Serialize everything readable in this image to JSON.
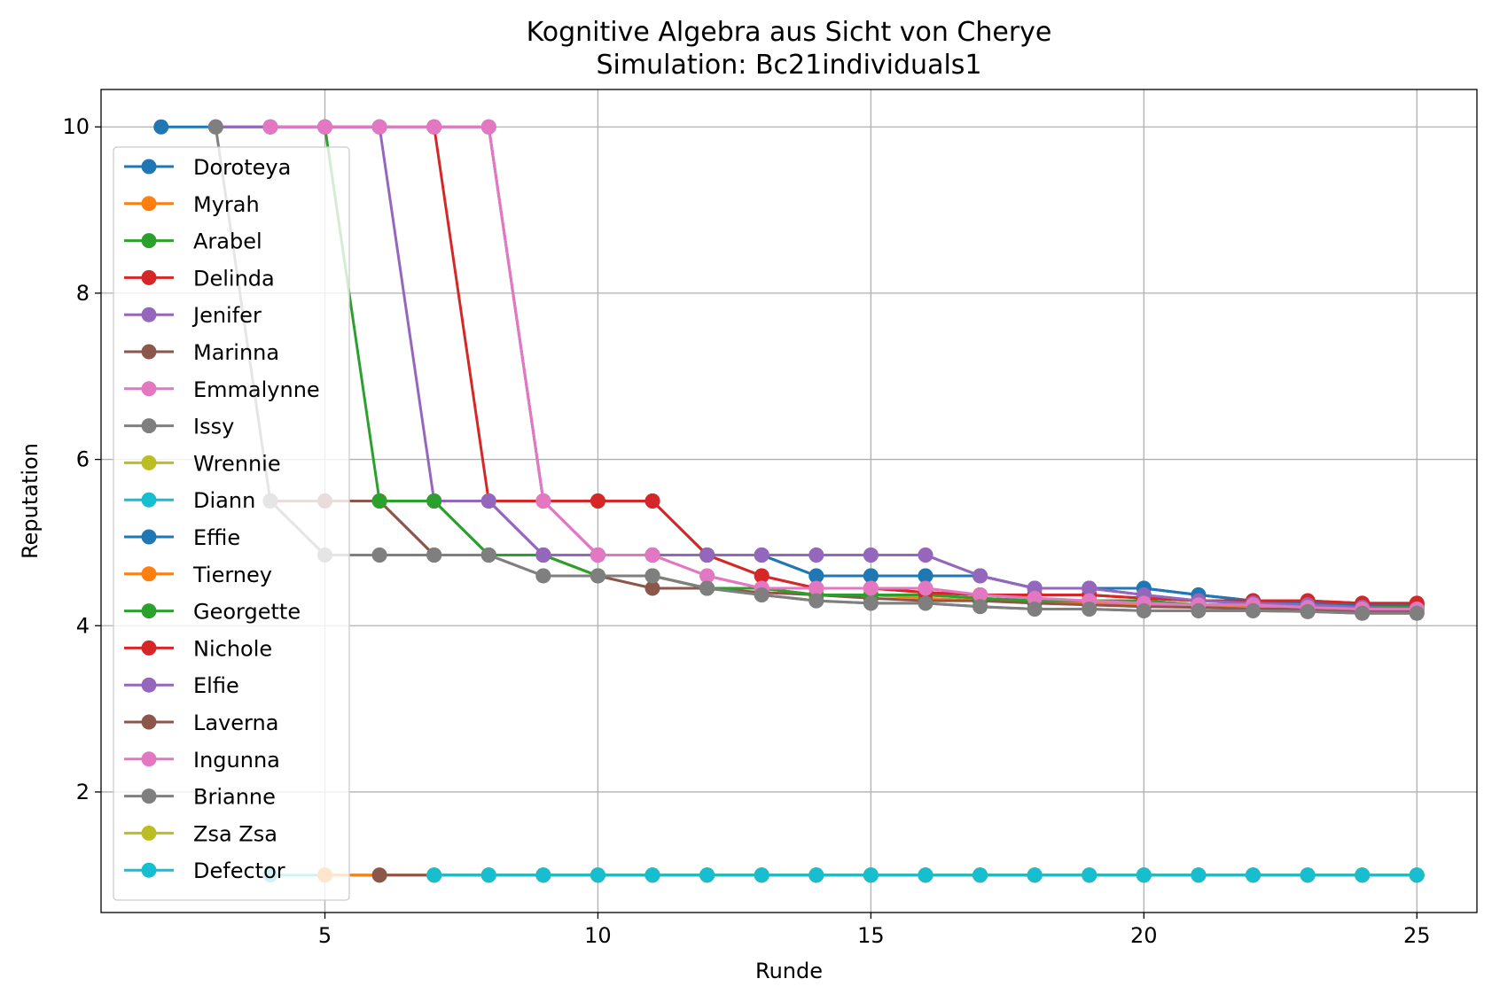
{
  "chart_data": {
    "type": "line",
    "title": "Kognitive Algebra aus Sicht von Cherye",
    "subtitle": "Simulation: Bc21individuals1",
    "xlabel": "Runde",
    "ylabel": "Reputation",
    "xlim": [
      0.9,
      26.1
    ],
    "ylim": [
      0.55,
      10.45
    ],
    "xticks": [
      5,
      10,
      15,
      20,
      25
    ],
    "yticks": [
      2,
      4,
      6,
      8,
      10
    ],
    "grid": true,
    "legend_position": "upper-left",
    "series": [
      {
        "name": "Doroteya",
        "color": "#1f77b4",
        "x": [
          2,
          3,
          4,
          5,
          6,
          7,
          8,
          9,
          10,
          11,
          12,
          13,
          14,
          15,
          16,
          17,
          18,
          19,
          20,
          21,
          22,
          23,
          24,
          25
        ],
        "y": [
          10,
          10,
          10,
          10,
          10,
          10,
          10,
          5.5,
          4.85,
          4.85,
          4.85,
          4.85,
          4.6,
          4.6,
          4.6,
          4.6,
          4.45,
          4.45,
          4.45,
          4.37,
          4.3,
          4.28,
          4.25,
          4.25
        ]
      },
      {
        "name": "Myrah",
        "color": "#ff7f0e",
        "x": [
          4,
          5,
          6,
          7,
          8,
          9,
          10,
          11,
          12,
          13,
          14,
          15,
          16,
          17,
          18,
          19,
          20,
          21,
          22,
          23,
          24,
          25
        ],
        "y": [
          5.5,
          5.5,
          5.5,
          4.85,
          4.85,
          4.85,
          4.6,
          4.6,
          4.45,
          4.45,
          4.37,
          4.37,
          4.33,
          4.3,
          4.3,
          4.28,
          4.25,
          4.25,
          4.23,
          4.22,
          4.2,
          4.2
        ]
      },
      {
        "name": "Arabel",
        "color": "#2ca02c",
        "x": [
          5,
          6,
          7,
          8,
          9,
          10,
          11,
          12,
          13,
          14,
          15,
          16,
          17,
          18,
          19,
          20,
          21,
          22,
          23,
          24,
          25
        ],
        "y": [
          10,
          5.5,
          5.5,
          4.85,
          4.85,
          4.6,
          4.6,
          4.45,
          4.45,
          4.37,
          4.37,
          4.37,
          4.33,
          4.3,
          4.3,
          4.3,
          4.25,
          4.25,
          4.25,
          4.22,
          4.22
        ]
      },
      {
        "name": "Delinda",
        "color": "#d62728",
        "x": [
          7,
          8,
          9,
          10,
          11,
          12,
          13,
          14,
          15,
          16,
          17,
          18,
          19,
          20,
          21,
          22,
          23,
          24,
          25
        ],
        "y": [
          10,
          5.5,
          5.5,
          5.5,
          5.5,
          4.85,
          4.6,
          4.45,
          4.45,
          4.4,
          4.37,
          4.37,
          4.37,
          4.33,
          4.3,
          4.3,
          4.3,
          4.27,
          4.27
        ]
      },
      {
        "name": "Jenifer",
        "color": "#9467bd",
        "x": [
          3,
          4,
          5,
          6,
          7,
          8,
          9,
          10,
          11,
          12,
          13,
          14,
          15,
          16,
          17,
          18,
          19,
          20,
          21,
          22,
          23,
          24,
          25
        ],
        "y": [
          10,
          10,
          10,
          10,
          5.5,
          5.5,
          4.85,
          4.85,
          4.85,
          4.85,
          4.85,
          4.85,
          4.85,
          4.85,
          4.6,
          4.45,
          4.45,
          4.37,
          4.3,
          4.27,
          4.25,
          4.22,
          4.2
        ]
      },
      {
        "name": "Marinna",
        "color": "#8c564b",
        "x": [
          4,
          5,
          6,
          7,
          8,
          9,
          10,
          11,
          12,
          13,
          14,
          15,
          16,
          17,
          18,
          19,
          20,
          21,
          22,
          23,
          24,
          25
        ],
        "y": [
          5.5,
          5.5,
          5.5,
          4.85,
          4.85,
          4.85,
          4.6,
          4.45,
          4.45,
          4.4,
          4.37,
          4.33,
          4.3,
          4.3,
          4.27,
          4.25,
          4.23,
          4.22,
          4.2,
          4.2,
          4.18,
          4.18
        ]
      },
      {
        "name": "Emmalynne",
        "color": "#e377c2",
        "x": [
          4,
          5,
          6,
          7,
          8,
          9,
          10,
          11,
          12,
          13,
          14,
          15,
          16,
          17,
          18,
          19,
          20,
          21,
          22,
          23,
          24,
          25
        ],
        "y": [
          10,
          10,
          10,
          10,
          10,
          5.5,
          4.85,
          4.85,
          4.6,
          4.45,
          4.45,
          4.45,
          4.45,
          4.37,
          4.33,
          4.3,
          4.27,
          4.25,
          4.25,
          4.22,
          4.2,
          4.2
        ]
      },
      {
        "name": "Issy",
        "color": "#7f7f7f",
        "x": [
          3,
          4,
          5,
          6,
          7,
          8,
          9,
          10,
          11,
          12,
          13,
          14,
          15,
          16,
          17,
          18,
          19,
          20,
          21,
          22,
          23,
          24,
          25
        ],
        "y": [
          10,
          5.5,
          4.85,
          4.85,
          4.85,
          4.85,
          4.6,
          4.6,
          4.6,
          4.45,
          4.37,
          4.3,
          4.27,
          4.27,
          4.23,
          4.2,
          4.2,
          4.18,
          4.18,
          4.18,
          4.17,
          4.15,
          4.15
        ]
      },
      {
        "name": "Wrennie",
        "color": "#bcbd22",
        "x": [
          7,
          8,
          9,
          10,
          11,
          12,
          13,
          14,
          15,
          16,
          17,
          18,
          19,
          20,
          21,
          22,
          23,
          24,
          25
        ],
        "y": [
          1,
          1,
          1,
          1,
          1,
          1,
          1,
          1,
          1,
          1,
          1,
          1,
          1,
          1,
          1,
          1,
          1,
          1,
          1
        ]
      },
      {
        "name": "Diann",
        "color": "#17becf",
        "x": [
          4,
          5,
          6,
          7,
          8,
          9,
          10,
          11,
          12,
          13,
          14,
          15,
          16,
          17,
          18,
          19,
          20,
          21,
          22,
          23,
          24,
          25
        ],
        "y": [
          1,
          1,
          1,
          1,
          1,
          1,
          1,
          1,
          1,
          1,
          1,
          1,
          1,
          1,
          1,
          1,
          1,
          1,
          1,
          1,
          1,
          1
        ]
      },
      {
        "name": "Effie",
        "color": "#1f77b4",
        "x": [
          10,
          11,
          12,
          13,
          14,
          15,
          16,
          17,
          18,
          19,
          20,
          21,
          22,
          23,
          24,
          25
        ],
        "y": [
          4.85,
          4.85,
          4.85,
          4.85,
          4.6,
          4.6,
          4.6,
          4.6,
          4.45,
          4.45,
          4.45,
          4.37,
          4.3,
          4.28,
          4.25,
          4.25
        ]
      },
      {
        "name": "Tierney",
        "color": "#ff7f0e",
        "x": [
          5,
          6,
          7,
          8,
          9,
          10,
          11,
          12,
          13,
          14,
          15,
          16,
          17,
          18,
          19,
          20,
          21,
          22,
          23,
          24,
          25
        ],
        "y": [
          1,
          1,
          1,
          1,
          1,
          1,
          1,
          1,
          1,
          1,
          1,
          1,
          1,
          1,
          1,
          1,
          1,
          1,
          1,
          1,
          1
        ]
      },
      {
        "name": "Georgette",
        "color": "#2ca02c",
        "x": [
          6,
          7,
          8,
          9,
          10,
          11,
          12,
          13,
          14,
          15,
          16,
          17,
          18,
          19,
          20,
          21,
          22,
          23,
          24,
          25
        ],
        "y": [
          5.5,
          5.5,
          4.85,
          4.85,
          4.6,
          4.6,
          4.45,
          4.45,
          4.37,
          4.37,
          4.37,
          4.33,
          4.3,
          4.3,
          4.3,
          4.25,
          4.25,
          4.25,
          4.22,
          4.22
        ]
      },
      {
        "name": "Nichole",
        "color": "#d62728",
        "x": [
          10,
          11,
          12,
          13,
          14,
          15,
          16,
          17,
          18,
          19,
          20,
          21,
          22,
          23,
          24,
          25
        ],
        "y": [
          5.5,
          5.5,
          4.85,
          4.6,
          4.45,
          4.45,
          4.4,
          4.37,
          4.37,
          4.37,
          4.33,
          4.3,
          4.3,
          4.3,
          4.27,
          4.27
        ]
      },
      {
        "name": "Elfie",
        "color": "#9467bd",
        "x": [
          8,
          9,
          10,
          11,
          12,
          13,
          14,
          15,
          16,
          17,
          18,
          19,
          20,
          21,
          22,
          23,
          24,
          25
        ],
        "y": [
          5.5,
          4.85,
          4.85,
          4.85,
          4.85,
          4.85,
          4.85,
          4.85,
          4.85,
          4.6,
          4.45,
          4.45,
          4.37,
          4.3,
          4.27,
          4.25,
          4.22,
          4.2
        ]
      },
      {
        "name": "Laverna",
        "color": "#8c564b",
        "x": [
          6,
          7,
          8,
          9,
          10,
          11,
          12,
          13,
          14,
          15,
          16,
          17,
          18,
          19,
          20,
          21,
          22,
          23,
          24,
          25
        ],
        "y": [
          1,
          1,
          1,
          1,
          1,
          1,
          1,
          1,
          1,
          1,
          1,
          1,
          1,
          1,
          1,
          1,
          1,
          1,
          1,
          1
        ]
      },
      {
        "name": "Ingunna",
        "color": "#e377c2",
        "x": [
          8,
          9,
          10,
          11,
          12,
          13,
          14,
          15,
          16,
          17,
          18,
          19,
          20,
          21,
          22,
          23,
          24,
          25
        ],
        "y": [
          10,
          5.5,
          4.85,
          4.85,
          4.6,
          4.45,
          4.45,
          4.45,
          4.45,
          4.37,
          4.33,
          4.3,
          4.27,
          4.25,
          4.25,
          4.22,
          4.2,
          4.2
        ]
      },
      {
        "name": "Brianne",
        "color": "#7f7f7f",
        "x": [
          6,
          7,
          8,
          9,
          10,
          11,
          12,
          13,
          14,
          15,
          16,
          17,
          18,
          19,
          20,
          21,
          22,
          23,
          24,
          25
        ],
        "y": [
          4.85,
          4.85,
          4.85,
          4.6,
          4.6,
          4.6,
          4.45,
          4.37,
          4.3,
          4.27,
          4.27,
          4.23,
          4.2,
          4.2,
          4.18,
          4.18,
          4.18,
          4.17,
          4.15,
          4.15
        ]
      },
      {
        "name": "Zsa Zsa",
        "color": "#bcbd22",
        "x": [
          7,
          8,
          9,
          10,
          11,
          12,
          13,
          14,
          15,
          16,
          17,
          18,
          19,
          20,
          21,
          22,
          23,
          24,
          25
        ],
        "y": [
          1,
          1,
          1,
          1,
          1,
          1,
          1,
          1,
          1,
          1,
          1,
          1,
          1,
          1,
          1,
          1,
          1,
          1,
          1
        ]
      },
      {
        "name": "Defector",
        "color": "#17becf",
        "x": [
          7,
          8,
          9,
          10,
          11,
          12,
          13,
          14,
          15,
          16,
          17,
          18,
          19,
          20,
          21,
          22,
          23,
          24,
          25
        ],
        "y": [
          1,
          1,
          1,
          1,
          1,
          1,
          1,
          1,
          1,
          1,
          1,
          1,
          1,
          1,
          1,
          1,
          1,
          1,
          1
        ]
      }
    ]
  }
}
